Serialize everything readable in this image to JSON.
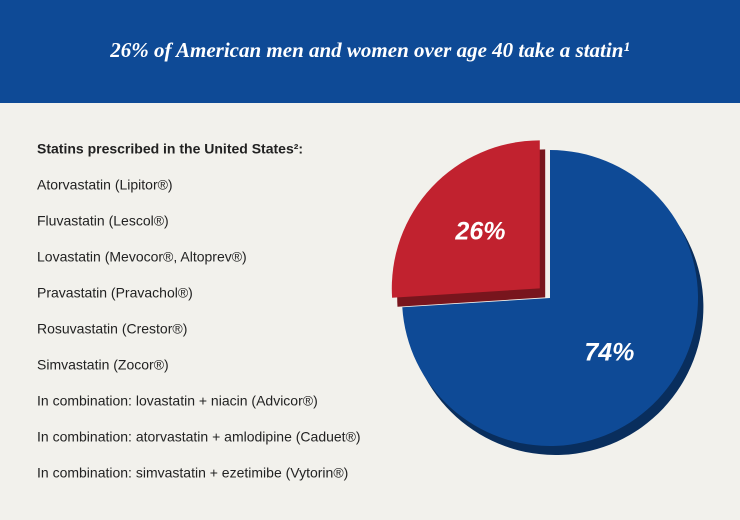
{
  "chart_data": {
    "type": "pie",
    "title": "26% of American men and women over age 40 take a statin¹",
    "values": [
      26,
      74
    ],
    "value_labels": [
      "26%",
      "74%"
    ],
    "colors": [
      "#c1222f",
      "#0e4a96"
    ]
  },
  "list": {
    "heading": "Statins prescribed in the United States²:",
    "items": [
      "Atorvastatin (Lipitor®)",
      "Fluvastatin (Lescol®)",
      "Lovastatin (Mevocor®, Altoprev®)",
      "Pravastatin (Pravachol®)",
      "Rosuvastatin (Crestor®)",
      "Simvastatin (Zocor®)",
      "In combination: lovastatin + niacin (Advicor®)",
      "In combination: atorvastatin + amlodipine (Caduet®)",
      "In combination: simvastatin + ezetimibe (Vytorin®)"
    ]
  }
}
